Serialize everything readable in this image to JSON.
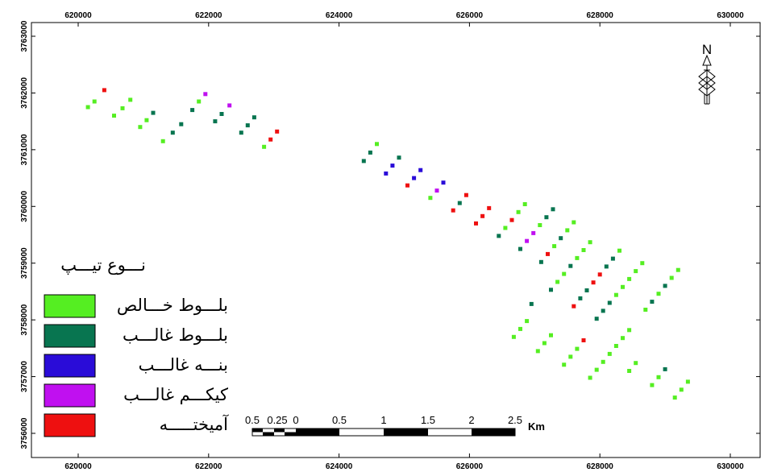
{
  "map": {
    "x_ticks": [
      {
        "value": 620000,
        "label": "620000"
      },
      {
        "value": 622000,
        "label": "622000"
      },
      {
        "value": 624000,
        "label": "624000"
      },
      {
        "value": 626000,
        "label": "626000"
      },
      {
        "value": 628000,
        "label": "628000"
      },
      {
        "value": 630000,
        "label": "630000"
      }
    ],
    "y_ticks": [
      {
        "value": 3763000,
        "label": "3763000"
      },
      {
        "value": 3762000,
        "label": "3762000"
      },
      {
        "value": 3761000,
        "label": "3761000"
      },
      {
        "value": 3760000,
        "label": "3760000"
      },
      {
        "value": 3759000,
        "label": "3759000"
      },
      {
        "value": 3758000,
        "label": "3758000"
      },
      {
        "value": 3757000,
        "label": "3757000"
      },
      {
        "value": 3756000,
        "label": "3756000"
      }
    ],
    "legend": {
      "title": "نـــوع تيـــپ",
      "items": [
        {
          "key": "pure_oak",
          "label": "بلـــوط خـــالص",
          "color": "#55ee22"
        },
        {
          "key": "oak_dominant",
          "label": "بلـــوط غالـــب",
          "color": "#087550"
        },
        {
          "key": "pistachio_dominant",
          "label": "بنـــه غالـــب",
          "color": "#2a0cd8"
        },
        {
          "key": "maple_dominant",
          "label": "كيكـــم غالـــب",
          "color": "#c010f0"
        },
        {
          "key": "mixed",
          "label": "آميختـــــه",
          "color": "#ee1010"
        }
      ]
    },
    "scale_bar": {
      "labels": [
        "0.5",
        "0.25",
        "0",
        "0.5",
        "1",
        "1.5",
        "2",
        "2.5"
      ],
      "unit": "Km"
    },
    "north": {
      "label": "N"
    },
    "points": [
      {
        "x": 620150,
        "y": 3761750,
        "t": "pure_oak"
      },
      {
        "x": 620250,
        "y": 3761850,
        "t": "pure_oak"
      },
      {
        "x": 620400,
        "y": 3762050,
        "t": "mixed"
      },
      {
        "x": 620550,
        "y": 3761600,
        "t": "pure_oak"
      },
      {
        "x": 620680,
        "y": 3761730,
        "t": "pure_oak"
      },
      {
        "x": 620800,
        "y": 3761880,
        "t": "pure_oak"
      },
      {
        "x": 620950,
        "y": 3761400,
        "t": "pure_oak"
      },
      {
        "x": 621050,
        "y": 3761520,
        "t": "pure_oak"
      },
      {
        "x": 621150,
        "y": 3761650,
        "t": "oak_dominant"
      },
      {
        "x": 621300,
        "y": 3761150,
        "t": "pure_oak"
      },
      {
        "x": 621450,
        "y": 3761300,
        "t": "oak_dominant"
      },
      {
        "x": 621580,
        "y": 3761450,
        "t": "oak_dominant"
      },
      {
        "x": 621750,
        "y": 3761700,
        "t": "oak_dominant"
      },
      {
        "x": 621850,
        "y": 3761850,
        "t": "pure_oak"
      },
      {
        "x": 621950,
        "y": 3761980,
        "t": "maple_dominant"
      },
      {
        "x": 622100,
        "y": 3761500,
        "t": "oak_dominant"
      },
      {
        "x": 622200,
        "y": 3761630,
        "t": "oak_dominant"
      },
      {
        "x": 622320,
        "y": 3761780,
        "t": "maple_dominant"
      },
      {
        "x": 622500,
        "y": 3761300,
        "t": "oak_dominant"
      },
      {
        "x": 622600,
        "y": 3761430,
        "t": "oak_dominant"
      },
      {
        "x": 622700,
        "y": 3761570,
        "t": "oak_dominant"
      },
      {
        "x": 622850,
        "y": 3761050,
        "t": "pure_oak"
      },
      {
        "x": 622950,
        "y": 3761180,
        "t": "mixed"
      },
      {
        "x": 623050,
        "y": 3761320,
        "t": "mixed"
      },
      {
        "x": 624380,
        "y": 3760800,
        "t": "oak_dominant"
      },
      {
        "x": 624480,
        "y": 3760950,
        "t": "oak_dominant"
      },
      {
        "x": 624580,
        "y": 3761100,
        "t": "pure_oak"
      },
      {
        "x": 624720,
        "y": 3760580,
        "t": "pistachio_dominant"
      },
      {
        "x": 624820,
        "y": 3760720,
        "t": "pistachio_dominant"
      },
      {
        "x": 624920,
        "y": 3760860,
        "t": "oak_dominant"
      },
      {
        "x": 625050,
        "y": 3760370,
        "t": "mixed"
      },
      {
        "x": 625150,
        "y": 3760500,
        "t": "pistachio_dominant"
      },
      {
        "x": 625250,
        "y": 3760640,
        "t": "pistachio_dominant"
      },
      {
        "x": 625400,
        "y": 3760150,
        "t": "pure_oak"
      },
      {
        "x": 625500,
        "y": 3760280,
        "t": "maple_dominant"
      },
      {
        "x": 625600,
        "y": 3760420,
        "t": "pistachio_dominant"
      },
      {
        "x": 625750,
        "y": 3759930,
        "t": "mixed"
      },
      {
        "x": 625850,
        "y": 3760060,
        "t": "oak_dominant"
      },
      {
        "x": 625950,
        "y": 3760200,
        "t": "mixed"
      },
      {
        "x": 626100,
        "y": 3759700,
        "t": "mixed"
      },
      {
        "x": 626200,
        "y": 3759830,
        "t": "mixed"
      },
      {
        "x": 626300,
        "y": 3759970,
        "t": "mixed"
      },
      {
        "x": 626450,
        "y": 3759480,
        "t": "oak_dominant"
      },
      {
        "x": 626550,
        "y": 3759620,
        "t": "pure_oak"
      },
      {
        "x": 626650,
        "y": 3759760,
        "t": "mixed"
      },
      {
        "x": 626750,
        "y": 3759900,
        "t": "pure_oak"
      },
      {
        "x": 626850,
        "y": 3760040,
        "t": "pure_oak"
      },
      {
        "x": 626780,
        "y": 3759250,
        "t": "oak_dominant"
      },
      {
        "x": 626880,
        "y": 3759390,
        "t": "maple_dominant"
      },
      {
        "x": 626980,
        "y": 3759530,
        "t": "maple_dominant"
      },
      {
        "x": 627080,
        "y": 3759670,
        "t": "pure_oak"
      },
      {
        "x": 627180,
        "y": 3759810,
        "t": "oak_dominant"
      },
      {
        "x": 627280,
        "y": 3759950,
        "t": "oak_dominant"
      },
      {
        "x": 627100,
        "y": 3759020,
        "t": "oak_dominant"
      },
      {
        "x": 627200,
        "y": 3759160,
        "t": "mixed"
      },
      {
        "x": 627300,
        "y": 3759300,
        "t": "pure_oak"
      },
      {
        "x": 627400,
        "y": 3759440,
        "t": "oak_dominant"
      },
      {
        "x": 627500,
        "y": 3759580,
        "t": "pure_oak"
      },
      {
        "x": 627600,
        "y": 3759720,
        "t": "pure_oak"
      },
      {
        "x": 627250,
        "y": 3758530,
        "t": "oak_dominant"
      },
      {
        "x": 627350,
        "y": 3758670,
        "t": "pure_oak"
      },
      {
        "x": 627450,
        "y": 3758810,
        "t": "pure_oak"
      },
      {
        "x": 627550,
        "y": 3758950,
        "t": "oak_dominant"
      },
      {
        "x": 627650,
        "y": 3759090,
        "t": "pure_oak"
      },
      {
        "x": 627750,
        "y": 3759230,
        "t": "pure_oak"
      },
      {
        "x": 627850,
        "y": 3759370,
        "t": "pure_oak"
      },
      {
        "x": 626950,
        "y": 3758280,
        "t": "oak_dominant"
      },
      {
        "x": 627600,
        "y": 3758240,
        "t": "mixed"
      },
      {
        "x": 627700,
        "y": 3758380,
        "t": "oak_dominant"
      },
      {
        "x": 627800,
        "y": 3758520,
        "t": "oak_dominant"
      },
      {
        "x": 627900,
        "y": 3758660,
        "t": "mixed"
      },
      {
        "x": 628000,
        "y": 3758800,
        "t": "mixed"
      },
      {
        "x": 628100,
        "y": 3758940,
        "t": "oak_dominant"
      },
      {
        "x": 628200,
        "y": 3759080,
        "t": "oak_dominant"
      },
      {
        "x": 628300,
        "y": 3759220,
        "t": "pure_oak"
      },
      {
        "x": 627950,
        "y": 3758020,
        "t": "oak_dominant"
      },
      {
        "x": 628050,
        "y": 3758160,
        "t": "oak_dominant"
      },
      {
        "x": 628150,
        "y": 3758300,
        "t": "oak_dominant"
      },
      {
        "x": 628250,
        "y": 3758440,
        "t": "pure_oak"
      },
      {
        "x": 628350,
        "y": 3758580,
        "t": "pure_oak"
      },
      {
        "x": 628450,
        "y": 3758720,
        "t": "pure_oak"
      },
      {
        "x": 628550,
        "y": 3758860,
        "t": "pure_oak"
      },
      {
        "x": 628650,
        "y": 3759000,
        "t": "pure_oak"
      },
      {
        "x": 628700,
        "y": 3758180,
        "t": "pure_oak"
      },
      {
        "x": 628800,
        "y": 3758320,
        "t": "oak_dominant"
      },
      {
        "x": 628900,
        "y": 3758460,
        "t": "pure_oak"
      },
      {
        "x": 629000,
        "y": 3758600,
        "t": "oak_dominant"
      },
      {
        "x": 629100,
        "y": 3758740,
        "t": "pure_oak"
      },
      {
        "x": 629200,
        "y": 3758880,
        "t": "pure_oak"
      },
      {
        "x": 626680,
        "y": 3757700,
        "t": "pure_oak"
      },
      {
        "x": 626780,
        "y": 3757840,
        "t": "pure_oak"
      },
      {
        "x": 626880,
        "y": 3757980,
        "t": "pure_oak"
      },
      {
        "x": 627050,
        "y": 3757450,
        "t": "pure_oak"
      },
      {
        "x": 627150,
        "y": 3757590,
        "t": "pure_oak"
      },
      {
        "x": 627250,
        "y": 3757730,
        "t": "pure_oak"
      },
      {
        "x": 627450,
        "y": 3757210,
        "t": "pure_oak"
      },
      {
        "x": 627550,
        "y": 3757350,
        "t": "pure_oak"
      },
      {
        "x": 627650,
        "y": 3757490,
        "t": "pure_oak"
      },
      {
        "x": 627750,
        "y": 3757640,
        "t": "mixed"
      },
      {
        "x": 627850,
        "y": 3756980,
        "t": "pure_oak"
      },
      {
        "x": 627950,
        "y": 3757120,
        "t": "pure_oak"
      },
      {
        "x": 628050,
        "y": 3757260,
        "t": "pure_oak"
      },
      {
        "x": 628150,
        "y": 3757400,
        "t": "pure_oak"
      },
      {
        "x": 628250,
        "y": 3757540,
        "t": "pure_oak"
      },
      {
        "x": 628350,
        "y": 3757680,
        "t": "pure_oak"
      },
      {
        "x": 628450,
        "y": 3757820,
        "t": "pure_oak"
      },
      {
        "x": 628450,
        "y": 3757100,
        "t": "pure_oak"
      },
      {
        "x": 628550,
        "y": 3757240,
        "t": "pure_oak"
      },
      {
        "x": 628800,
        "y": 3756850,
        "t": "pure_oak"
      },
      {
        "x": 628900,
        "y": 3756990,
        "t": "pure_oak"
      },
      {
        "x": 629000,
        "y": 3757130,
        "t": "oak_dominant"
      },
      {
        "x": 629150,
        "y": 3756630,
        "t": "pure_oak"
      },
      {
        "x": 629250,
        "y": 3756770,
        "t": "pure_oak"
      },
      {
        "x": 629350,
        "y": 3756910,
        "t": "pure_oak"
      }
    ]
  }
}
